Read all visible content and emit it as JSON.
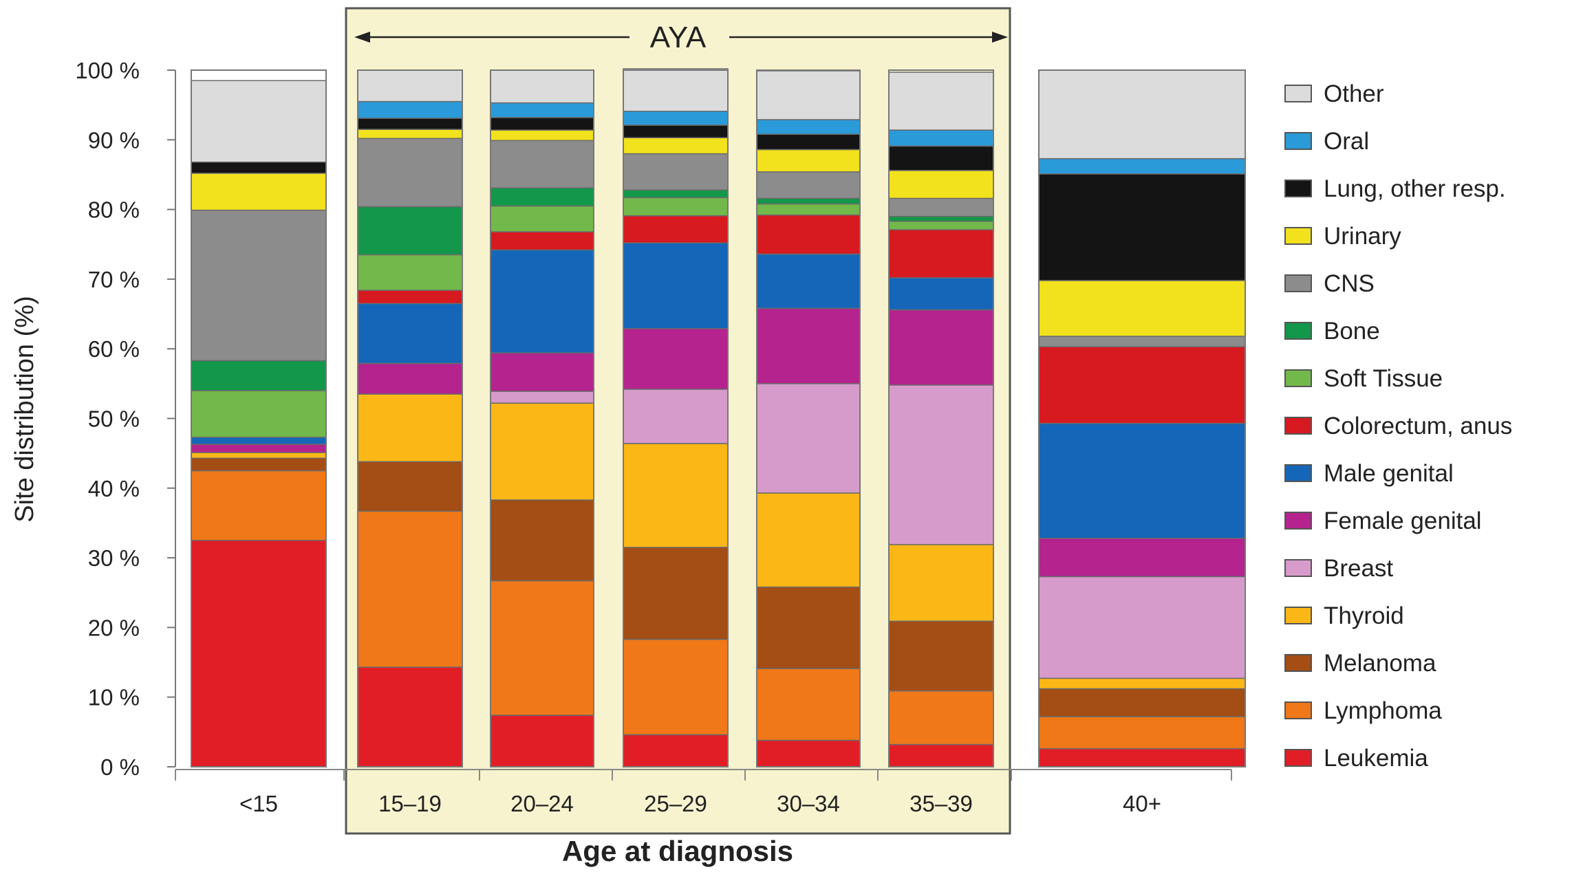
{
  "chart_data": {
    "type": "bar",
    "stacked": true,
    "percent": true,
    "title": "",
    "xlabel": "Age at diagnosis",
    "ylabel": "Site distribution (%)",
    "ylim": [
      0,
      100
    ],
    "yticks": [
      "0 %",
      "10 %",
      "20 %",
      "30 %",
      "40 %",
      "50 %",
      "60 %",
      "70 %",
      "80 %",
      "90 %",
      "100 %"
    ],
    "categories": [
      "<15",
      "15–19",
      "20–24",
      "25–29",
      "30–34",
      "35–39",
      "40+"
    ],
    "group_bracket": {
      "label": "AYA",
      "categories": [
        "15–19",
        "20–24",
        "25–29",
        "30–34",
        "35–39"
      ]
    },
    "legend_position": "right",
    "series": [
      {
        "name": "Leukemia",
        "color": "#e11e26",
        "values": [
          32.5,
          14.3,
          7.4,
          4.6,
          3.8,
          3.2,
          2.6
        ]
      },
      {
        "name": "Lymphoma",
        "color": "#f07818",
        "values": [
          10.0,
          22.4,
          19.3,
          13.7,
          10.3,
          7.7,
          4.6
        ]
      },
      {
        "name": "Melanoma",
        "color": "#a44d14",
        "values": [
          1.8,
          7.1,
          11.6,
          13.2,
          11.7,
          10.0,
          4.0
        ]
      },
      {
        "name": "Thyroid",
        "color": "#fbb716",
        "values": [
          0.8,
          9.7,
          13.9,
          14.9,
          13.5,
          11.0,
          1.5
        ]
      },
      {
        "name": "Breast",
        "color": "#d79bcb",
        "values": [
          0,
          0,
          1.7,
          7.8,
          15.7,
          22.9,
          14.6
        ]
      },
      {
        "name": "Female genital",
        "color": "#b4238e",
        "values": [
          1.2,
          4.4,
          5.5,
          8.7,
          10.8,
          10.8,
          5.5
        ]
      },
      {
        "name": "Male genital",
        "color": "#1566b8",
        "values": [
          1.0,
          8.6,
          14.8,
          12.3,
          7.8,
          4.6,
          16.5
        ]
      },
      {
        "name": "Colorectum, anus",
        "color": "#d71920",
        "values": [
          0,
          1.9,
          2.6,
          3.9,
          5.6,
          6.9,
          11.0
        ]
      },
      {
        "name": "Soft Tissue",
        "color": "#72b84a",
        "values": [
          6.7,
          5.1,
          3.7,
          2.6,
          1.6,
          1.2,
          0
        ]
      },
      {
        "name": "Bone",
        "color": "#13974a",
        "values": [
          4.3,
          6.9,
          2.6,
          1.1,
          0.8,
          0.7,
          0
        ]
      },
      {
        "name": "CNS",
        "color": "#8c8c8c",
        "values": [
          21.6,
          9.8,
          6.8,
          5.2,
          3.8,
          2.6,
          1.5
        ]
      },
      {
        "name": "Urinary",
        "color": "#f2e21d",
        "values": [
          5.3,
          1.3,
          1.5,
          2.3,
          3.2,
          4.0,
          8.0
        ]
      },
      {
        "name": "Lung, other resp.",
        "color": "#141414",
        "values": [
          1.6,
          1.6,
          1.8,
          1.8,
          2.2,
          3.5,
          15.3
        ]
      },
      {
        "name": "Oral",
        "color": "#2a9ad8",
        "values": [
          0,
          2.4,
          2.1,
          2.0,
          2.1,
          2.3,
          2.2
        ]
      },
      {
        "name": "Other",
        "color": "#dcdcdc",
        "values": [
          11.7,
          4.5,
          4.7,
          6.1,
          7.0,
          8.3,
          12.7
        ]
      }
    ]
  }
}
